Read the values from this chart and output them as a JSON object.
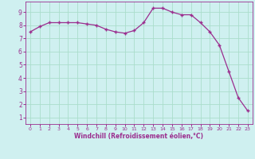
{
  "x": [
    0,
    1,
    2,
    3,
    4,
    5,
    6,
    7,
    8,
    9,
    10,
    11,
    12,
    13,
    14,
    15,
    16,
    17,
    18,
    19,
    20,
    21,
    22,
    23
  ],
  "y": [
    7.5,
    7.9,
    8.2,
    8.2,
    8.2,
    8.2,
    8.1,
    8.0,
    7.7,
    7.5,
    7.4,
    7.6,
    8.2,
    9.3,
    9.3,
    9.0,
    8.8,
    8.8,
    8.2,
    7.5,
    6.5,
    4.5,
    2.5,
    1.5
  ],
  "line_color": "#9b2d8e",
  "marker": "+",
  "bg_color": "#cff0f0",
  "grid_color": "#aaddcc",
  "xlabel": "Windchill (Refroidissement éolien,°C)",
  "xlabel_color": "#9b2d8e",
  "tick_color": "#9b2d8e",
  "ylim": [
    0.5,
    9.8
  ],
  "xlim": [
    -0.5,
    23.5
  ],
  "yticks": [
    1,
    2,
    3,
    4,
    5,
    6,
    7,
    8,
    9
  ],
  "xticks": [
    0,
    1,
    2,
    3,
    4,
    5,
    6,
    7,
    8,
    9,
    10,
    11,
    12,
    13,
    14,
    15,
    16,
    17,
    18,
    19,
    20,
    21,
    22,
    23
  ],
  "figsize": [
    3.2,
    2.0
  ],
  "dpi": 100
}
